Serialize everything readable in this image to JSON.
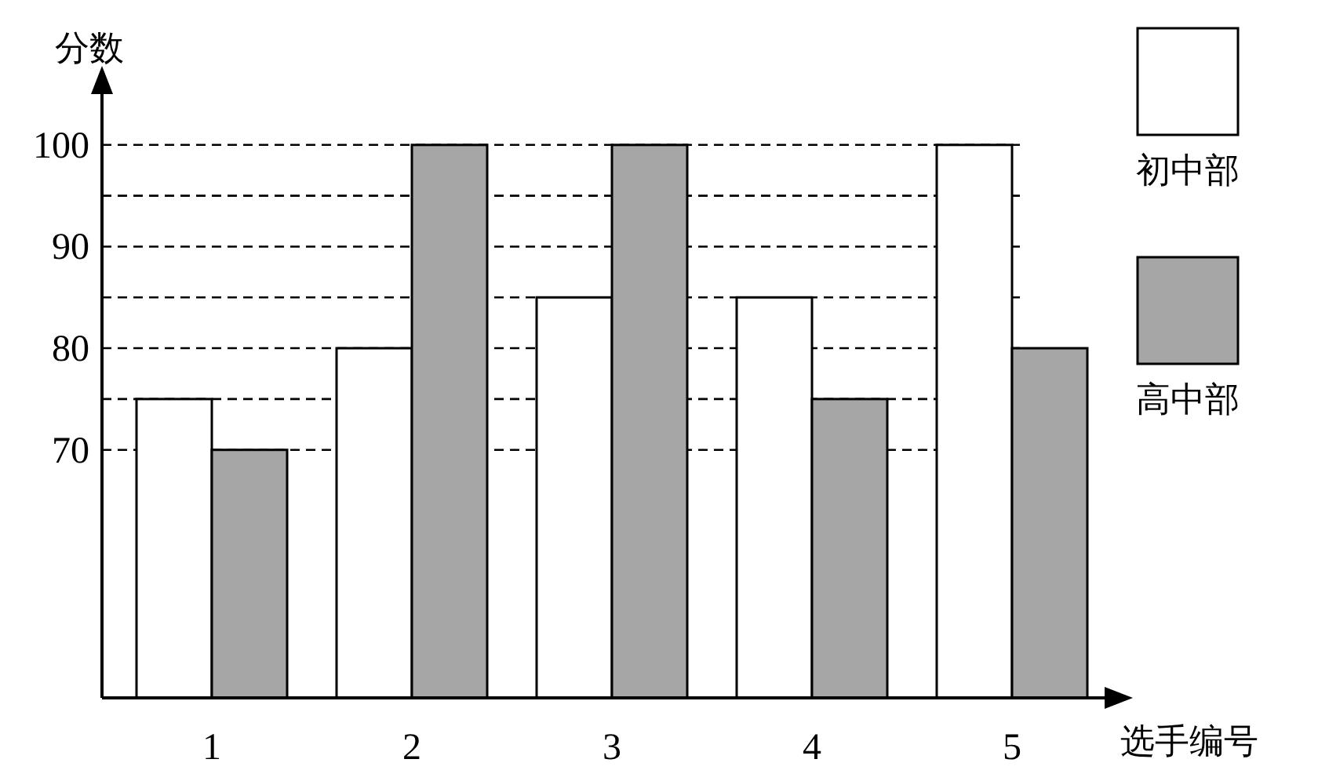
{
  "chart_data": {
    "type": "bar",
    "ylabel": "分数",
    "xlabel": "选手编号",
    "categories": [
      "1",
      "2",
      "3",
      "4",
      "5"
    ],
    "series": [
      {
        "name": "初中部",
        "color": "#ffffff",
        "values": [
          75,
          80,
          85,
          85,
          100
        ]
      },
      {
        "name": "高中部",
        "color": "#a6a6a6",
        "values": [
          70,
          100,
          100,
          75,
          80
        ]
      }
    ],
    "ylim": [
      45.6,
      105
    ],
    "yticks": [
      70,
      {
        "value": 75,
        "label": null
      },
      80,
      {
        "value": 85,
        "label": null
      },
      90,
      {
        "value": 95,
        "label": null
      },
      100
    ],
    "grid": "y",
    "legend": "top right"
  }
}
